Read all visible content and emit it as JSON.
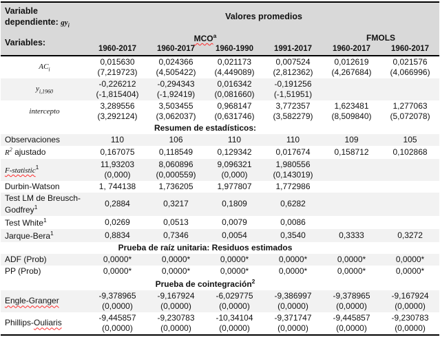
{
  "colors": {
    "header_bg": "#d9d9d9",
    "row_shade_bg": "#f2f2f2",
    "border": "#000000",
    "spellcheck_underline": "#ff2a2a"
  },
  "table": {
    "header": {
      "dependent_variable": {
        "prefix": "Variable dependiente: ",
        "math": "gy",
        "sub": "i"
      },
      "valores": "Valores promedios",
      "variables_label": "Variables:",
      "mco": {
        "text": "MCO",
        "sup": "a"
      },
      "fmols": "FMOLS",
      "years": [
        "1960-2017",
        "1960-2017",
        "1960-1990",
        "1991-2017",
        "1960-2017",
        "1960-2017"
      ]
    },
    "rows": [
      {
        "type": "coef",
        "shade": false,
        "center": true,
        "label": [
          {
            "t": "AC",
            "s": "math"
          },
          {
            "t": "i",
            "s": "mathsub"
          }
        ],
        "cells": [
          {
            "v": "0,015630",
            "t": "(7,219723)"
          },
          {
            "v": "0,024366",
            "t": "(4,505422)"
          },
          {
            "v": "0,021173",
            "t": "(4,449089)"
          },
          {
            "v": "0,007524",
            "t": "(2,812362)"
          },
          {
            "v": "0,012619",
            "t": "(4,267684)"
          },
          {
            "v": "0,021576",
            "t": "(4,066996)"
          }
        ]
      },
      {
        "type": "coef",
        "shade": true,
        "center": true,
        "label": [
          {
            "t": "y",
            "s": "math"
          },
          {
            "t": "i,1960",
            "s": "mathsub"
          }
        ],
        "cells": [
          {
            "v": "-0,226212",
            "t": "(-1,815404)"
          },
          {
            "v": "-0,294343",
            "t": "(-1,92419)"
          },
          {
            "v": "0,016342",
            "t": "(0,081660)"
          },
          {
            "v": "-0,191256",
            "t": "(-1,51951)"
          },
          "",
          ""
        ]
      },
      {
        "type": "coef",
        "shade": false,
        "center": true,
        "label": [
          {
            "t": "intercepto",
            "s": "math"
          }
        ],
        "cells": [
          {
            "v": "3,289556",
            "t": "(3,292124)"
          },
          {
            "v": "3,503455",
            "t": "(3,062037)"
          },
          {
            "v": "0,968147",
            "t": "(0,631746)"
          },
          {
            "v": "3,772357",
            "t": "(3,582279)"
          },
          {
            "v": "1,623481",
            "t": "(8,509840)"
          },
          {
            "v": "1,277063",
            "t": "(5,072078)"
          }
        ]
      },
      {
        "type": "section",
        "shade": false,
        "label": [
          {
            "t": "Resumen de estadísticos:"
          }
        ]
      },
      {
        "type": "stat",
        "shade": true,
        "label": [
          {
            "t": "Observaciones"
          }
        ],
        "cells": [
          "110",
          "106",
          "110",
          "110",
          "109",
          "105"
        ]
      },
      {
        "type": "stat",
        "shade": false,
        "label": [
          {
            "t": "R",
            "s": "math"
          },
          {
            "t": "2",
            "s": "mathsup"
          },
          {
            "t": " ajustado"
          }
        ],
        "cells": [
          "0,167075",
          "0,118549",
          "0,129342",
          "0,017674",
          "0,158712",
          "0,102868"
        ]
      },
      {
        "type": "coef",
        "shade": true,
        "center": false,
        "label": [
          {
            "t": "F-statistic",
            "s": "math squiggle"
          },
          {
            "t": "1",
            "s": "sup"
          }
        ],
        "cells": [
          {
            "v": "11,93203",
            "t": "(0,000)"
          },
          {
            "v": "8,060896",
            "t": "(0,000559)"
          },
          {
            "v": "9,096321",
            "t": "(0,000)"
          },
          {
            "v": "1,980556",
            "t": "(0,143019)"
          },
          "",
          ""
        ]
      },
      {
        "type": "stat",
        "shade": false,
        "label": [
          {
            "t": "Durbin-Watson"
          }
        ],
        "cells": [
          "1, 744138",
          "1,736205",
          "1,977807",
          "1,772986",
          "",
          ""
        ]
      },
      {
        "type": "stat",
        "shade": true,
        "label": [
          {
            "t": "Test LM de Breusch-Godfrey"
          },
          {
            "t": "1",
            "s": "sup"
          }
        ],
        "cells": [
          "0,2884",
          "0,3217",
          "0,1809",
          "0,6282",
          "",
          ""
        ]
      },
      {
        "type": "stat",
        "shade": false,
        "label": [
          {
            "t": "Test White"
          },
          {
            "t": "1",
            "s": "sup"
          }
        ],
        "cells": [
          "0,0269",
          "0,0513",
          "0,0079",
          "0,0086",
          "",
          ""
        ]
      },
      {
        "type": "stat",
        "shade": true,
        "label": [
          {
            "t": "Jarque-Bera"
          },
          {
            "t": "1",
            "s": "sup"
          }
        ],
        "cells": [
          "0,8834",
          "0,7346",
          "0,0054",
          "0,3540",
          "0,3333",
          "0,3272"
        ]
      },
      {
        "type": "section",
        "shade": false,
        "label": [
          {
            "t": "Prueba de raíz unitaria: Residuos estimados"
          }
        ]
      },
      {
        "type": "stat",
        "shade": true,
        "label": [
          {
            "t": "ADF (Prob)"
          }
        ],
        "cells": [
          "0,0000*",
          "0,0000*",
          "0,0000*",
          "0,0000*",
          "0,0000*",
          "0,0000*"
        ]
      },
      {
        "type": "stat",
        "shade": false,
        "label": [
          {
            "t": "PP (Prob)"
          }
        ],
        "cells": [
          "0,0000*",
          "0,0000*",
          "0,0000*",
          "0,0000*",
          "0,0000*",
          "0,0000*"
        ]
      },
      {
        "type": "section",
        "shade": false,
        "label": [
          {
            "t": "Prueba de cointegración"
          },
          {
            "t": "2",
            "s": "sup"
          }
        ]
      },
      {
        "type": "coef",
        "shade": true,
        "center": false,
        "label": [
          {
            "t": "Engle-Granger",
            "s": "squiggle"
          }
        ],
        "cells": [
          {
            "v": "-9,378965",
            "t": "(0,0000)"
          },
          {
            "v": "-9,167924",
            "t": "(0,0000)"
          },
          {
            "v": "-6,029775",
            "t": "(0,0000)"
          },
          {
            "v": "-9,386997",
            "t": "(0,0000)"
          },
          {
            "v": "-9,378965",
            "t": "(0,0000)"
          },
          {
            "v": "-9,167924",
            "t": "(0,0000)"
          }
        ]
      },
      {
        "type": "coef",
        "shade": false,
        "center": false,
        "label": [
          {
            "t": "Phillips-"
          },
          {
            "t": "Ouliaris",
            "s": "squiggle"
          }
        ],
        "cells": [
          {
            "v": "-9,445857",
            "t": "(0,0000)"
          },
          {
            "v": "-9,230783",
            "t": "(0,0000)"
          },
          {
            "v": "-10,34104",
            "t": "(0,0000)"
          },
          {
            "v": "-9,371747",
            "t": "(0,0000)"
          },
          {
            "v": "-9,445857",
            "t": "(0,0000)"
          },
          {
            "v": "-9,230783",
            "t": "(0,0000)"
          }
        ]
      }
    ]
  }
}
